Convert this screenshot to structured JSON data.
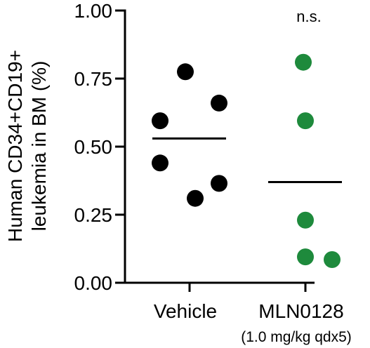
{
  "chart_data": {
    "type": "scatter",
    "title": "",
    "ylabel_line1": "Human CD34+CD19+",
    "ylabel_line2": "leukemia in BM (%)",
    "ylim": [
      0,
      1.0
    ],
    "yticks": [
      {
        "value": 0.0,
        "label": "0.00"
      },
      {
        "value": 0.25,
        "label": "0.25"
      },
      {
        "value": 0.5,
        "label": "0.50"
      },
      {
        "value": 0.75,
        "label": "0.75"
      },
      {
        "value": 1.0,
        "label": "1.00"
      }
    ],
    "groups": [
      {
        "label": "Vehicle",
        "sublabel": "",
        "color": "#000000",
        "mean": 0.53,
        "points": [
          0.775,
          0.66,
          0.595,
          0.44,
          0.365,
          0.31
        ]
      },
      {
        "label": "MLN0128",
        "sublabel": "(1.0 mg/kg qdx5)",
        "color": "#1e8a3c",
        "mean": 0.37,
        "points": [
          0.81,
          0.595,
          0.23,
          0.095,
          0.085
        ]
      }
    ],
    "annotation": "n.s."
  }
}
